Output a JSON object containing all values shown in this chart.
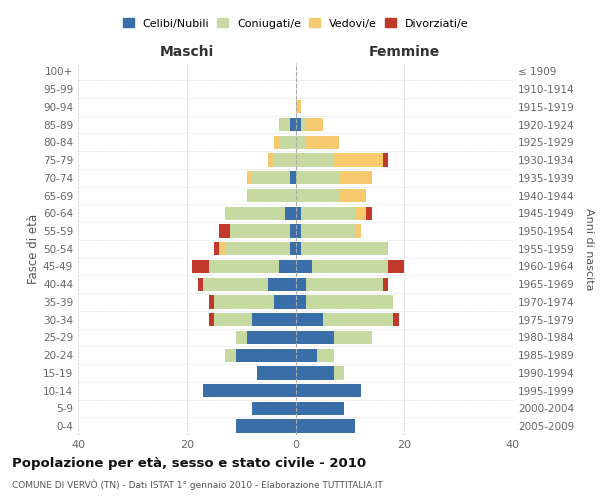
{
  "age_groups_bottom_to_top": [
    "0-4",
    "5-9",
    "10-14",
    "15-19",
    "20-24",
    "25-29",
    "30-34",
    "35-39",
    "40-44",
    "45-49",
    "50-54",
    "55-59",
    "60-64",
    "65-69",
    "70-74",
    "75-79",
    "80-84",
    "85-89",
    "90-94",
    "95-99",
    "100+"
  ],
  "birth_years_bottom_to_top": [
    "2005-2009",
    "2000-2004",
    "1995-1999",
    "1990-1994",
    "1985-1989",
    "1980-1984",
    "1975-1979",
    "1970-1974",
    "1965-1969",
    "1960-1964",
    "1955-1959",
    "1950-1954",
    "1945-1949",
    "1940-1944",
    "1935-1939",
    "1930-1934",
    "1925-1929",
    "1920-1924",
    "1915-1919",
    "1910-1914",
    "≤ 1909"
  ],
  "maschi": {
    "celibi": [
      11,
      8,
      17,
      7,
      11,
      9,
      8,
      4,
      5,
      3,
      1,
      1,
      2,
      0,
      1,
      0,
      0,
      1,
      0,
      0,
      0
    ],
    "coniugati": [
      0,
      0,
      0,
      0,
      2,
      2,
      7,
      11,
      12,
      13,
      12,
      11,
      11,
      9,
      7,
      4,
      3,
      2,
      0,
      0,
      0
    ],
    "vedovi": [
      0,
      0,
      0,
      0,
      0,
      0,
      0,
      0,
      0,
      0,
      1,
      0,
      0,
      0,
      1,
      1,
      1,
      0,
      0,
      0,
      0
    ],
    "divorziati": [
      0,
      0,
      0,
      0,
      0,
      0,
      1,
      1,
      1,
      3,
      1,
      2,
      0,
      0,
      0,
      0,
      0,
      0,
      0,
      0,
      0
    ]
  },
  "femmine": {
    "nubili": [
      11,
      9,
      12,
      7,
      4,
      7,
      5,
      2,
      2,
      3,
      1,
      1,
      1,
      0,
      0,
      0,
      0,
      1,
      0,
      0,
      0
    ],
    "coniugate": [
      0,
      0,
      0,
      2,
      3,
      7,
      13,
      16,
      14,
      14,
      16,
      10,
      10,
      8,
      8,
      7,
      2,
      1,
      0,
      0,
      0
    ],
    "vedove": [
      0,
      0,
      0,
      0,
      0,
      0,
      0,
      0,
      0,
      0,
      0,
      1,
      2,
      5,
      6,
      9,
      6,
      3,
      1,
      0,
      0
    ],
    "divorziate": [
      0,
      0,
      0,
      0,
      0,
      0,
      1,
      0,
      1,
      3,
      0,
      0,
      1,
      0,
      0,
      1,
      0,
      0,
      0,
      0,
      0
    ]
  },
  "colors": {
    "celibi_nubili": "#3a6ea8",
    "coniugati_e": "#c5d9a0",
    "vedovi_e": "#f5c96e",
    "divorziati_e": "#c0392b"
  },
  "xlim": 40,
  "title": "Popolazione per età, sesso e stato civile - 2010",
  "subtitle": "COMUNE DI VERVÒ (TN) - Dati ISTAT 1° gennaio 2010 - Elaborazione TUTTITALIA.IT",
  "ylabel_left": "Fasce di età",
  "ylabel_right": "Anni di nascita",
  "xlabel_left": "Maschi",
  "xlabel_right": "Femmine",
  "legend_labels": [
    "Celibi/Nubili",
    "Coniugati/e",
    "Vedovi/e",
    "Divorziati/e"
  ]
}
